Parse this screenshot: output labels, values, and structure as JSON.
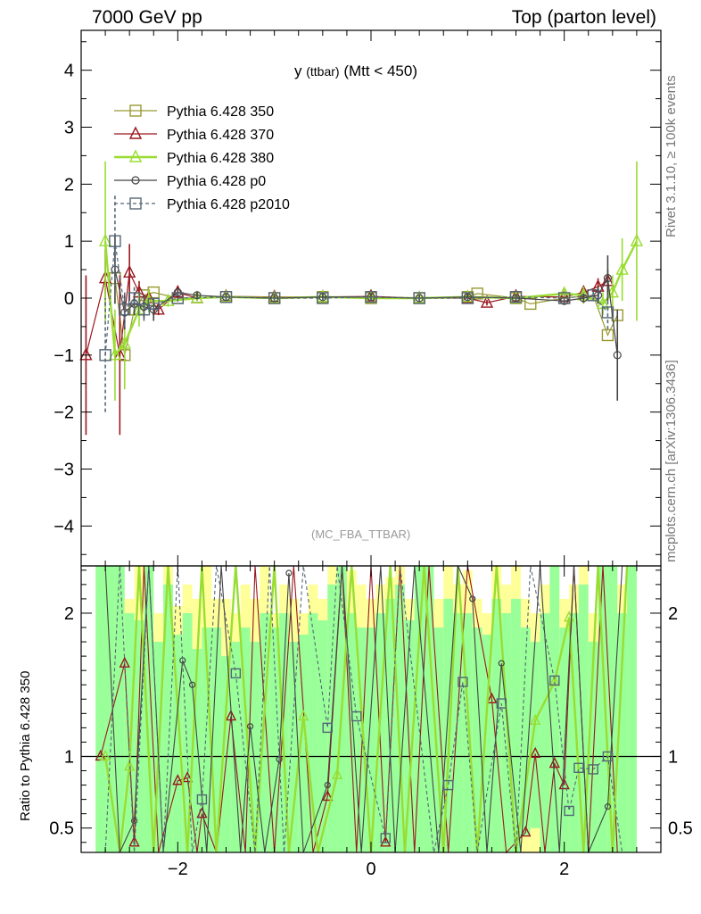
{
  "header": {
    "left": "7000 GeV pp",
    "right": "Top (parton level)"
  },
  "side_text": {
    "top": "Rivet 3.1.10, ≥ 100k events",
    "bottom": "mcplots.cern.ch [arXiv:1306.3436]"
  },
  "plot_title": {
    "main": "y",
    "sub": "(ttbar)",
    "cut": "(Mtt < 450)"
  },
  "analysis_label": "(MC_FBA_TTBAR)",
  "ratio_ylabel": "Ratio to Pythia 6.428 350",
  "colors": {
    "s350": "#999933",
    "s370": "#99181f",
    "s380": "#99dd33",
    "p0": "#444444",
    "p2010": "#556677",
    "band_yellow": "#ffff99",
    "band_green": "#99ff99"
  },
  "chart_data": [
    {
      "type": "scatter",
      "panel": "main",
      "xlim": [
        -3.0,
        3.0
      ],
      "ylim": [
        -4.7,
        4.7
      ],
      "x_ticks": [
        -2,
        0,
        2
      ],
      "y_ticks": [
        -4,
        -3,
        -2,
        -1,
        0,
        1,
        2,
        3,
        4
      ],
      "legend_position": "top-left",
      "series": [
        {
          "name": "Pythia 6.428 350",
          "key": "s350",
          "marker": "square",
          "x": [
            -2.65,
            -2.55,
            -2.45,
            -2.35,
            -2.25,
            -2.0,
            -1.5,
            -1.0,
            -0.5,
            0.0,
            0.5,
            1.0,
            1.1,
            1.5,
            1.65,
            2.0,
            2.3,
            2.45,
            2.55
          ],
          "y": [
            0.35,
            -1.0,
            -0.2,
            0.05,
            0.1,
            0.0,
            0.02,
            0.0,
            0.02,
            0.0,
            0.0,
            0.02,
            0.08,
            0.0,
            -0.1,
            0.0,
            0.05,
            -0.65,
            -0.3
          ]
        },
        {
          "name": "Pythia 6.428 370",
          "key": "s370",
          "marker": "triangle",
          "x": [
            -2.95,
            -2.75,
            -2.6,
            -2.5,
            -2.4,
            -2.3,
            -2.2,
            -2.0,
            -1.8,
            -1.5,
            -1.0,
            -0.5,
            0.0,
            0.5,
            1.0,
            1.2,
            1.5,
            2.0,
            2.2,
            2.35,
            2.45
          ],
          "y": [
            -1.0,
            0.35,
            -1.0,
            0.45,
            0.1,
            0.0,
            -0.2,
            0.1,
            0.0,
            0.03,
            0.02,
            0.02,
            0.03,
            0.0,
            0.0,
            -0.08,
            0.03,
            0.02,
            0.1,
            0.2,
            0.3
          ],
          "err": [
            1.4,
            0.5,
            1.4,
            0.5,
            0.2,
            0.1,
            0.1,
            0.1,
            0.05,
            0.05,
            0.05,
            0.05,
            0.05,
            0.05,
            0.05,
            0.05,
            0.05,
            0.05,
            0.1,
            0.15,
            0.2
          ]
        },
        {
          "name": "Pythia 6.428 380",
          "key": "s380",
          "marker": "triangle",
          "x": [
            -2.75,
            -2.65,
            -2.55,
            -2.4,
            -2.3,
            -2.1,
            -1.8,
            -1.5,
            -1.0,
            -0.5,
            0.0,
            0.5,
            1.0,
            1.5,
            2.0,
            2.2,
            2.4,
            2.5,
            2.6,
            2.75
          ],
          "y": [
            1.0,
            -1.0,
            -0.8,
            -0.2,
            -0.05,
            -0.05,
            0.0,
            0.02,
            0.0,
            0.02,
            0.0,
            0.0,
            0.02,
            0.0,
            0.08,
            0.05,
            -0.1,
            0.1,
            0.5,
            1.0
          ],
          "err": [
            1.4,
            0.8,
            0.8,
            0.3,
            0.2,
            0.1,
            0.05,
            0.05,
            0.05,
            0.05,
            0.05,
            0.05,
            0.05,
            0.05,
            0.1,
            0.15,
            0.2,
            0.3,
            0.55,
            1.4
          ]
        },
        {
          "name": "Pythia 6.428 p0",
          "key": "p0",
          "marker": "circle",
          "x": [
            -2.65,
            -2.55,
            -2.45,
            -2.35,
            -2.25,
            -2.0,
            -1.8,
            -1.5,
            -1.0,
            -0.5,
            0.0,
            0.5,
            1.0,
            1.5,
            2.0,
            2.2,
            2.35,
            2.45,
            2.55
          ],
          "y": [
            0.5,
            -0.25,
            -0.1,
            -0.15,
            -0.2,
            0.1,
            0.05,
            0.02,
            0.0,
            0.02,
            0.02,
            0.0,
            0.02,
            0.0,
            -0.05,
            0.0,
            0.05,
            0.35,
            -1.0
          ],
          "err": [
            0.6,
            0.3,
            0.2,
            0.2,
            0.2,
            0.08,
            0.06,
            0.05,
            0.05,
            0.05,
            0.05,
            0.05,
            0.05,
            0.05,
            0.06,
            0.08,
            0.15,
            0.4,
            0.8
          ]
        },
        {
          "name": "Pythia 6.428 p2010",
          "key": "p2010",
          "marker": "square",
          "x": [
            -2.75,
            -2.65,
            -2.55,
            -2.45,
            -2.35,
            -2.25,
            -2.0,
            -1.5,
            -1.0,
            -0.5,
            0.0,
            0.5,
            1.0,
            1.5,
            2.0,
            2.3,
            2.45
          ],
          "y": [
            -1.0,
            1.0,
            -0.2,
            0.0,
            -0.2,
            -0.1,
            0.0,
            0.02,
            0.0,
            0.0,
            0.02,
            0.0,
            0.0,
            0.02,
            0.0,
            0.05,
            -0.25
          ],
          "err": [
            1.0,
            0.8,
            0.3,
            0.2,
            0.2,
            0.1,
            0.06,
            0.05,
            0.05,
            0.05,
            0.05,
            0.05,
            0.05,
            0.05,
            0.06,
            0.1,
            0.3
          ]
        }
      ]
    },
    {
      "type": "line",
      "panel": "ratio",
      "ylabel": "Ratio to Pythia 6.428 350",
      "xlim": [
        -3.0,
        3.0
      ],
      "ylim": [
        0.33,
        2.33
      ],
      "x_ticks": [
        -2,
        0,
        2
      ],
      "y_ticks": [
        0.5,
        1,
        2
      ],
      "reference_line": 1.0,
      "bands": {
        "x": [
          -2.8,
          -2.7,
          -2.6,
          -2.5,
          -2.4,
          -2.3,
          -2.2,
          -2.1,
          -2.0,
          -1.9,
          -1.8,
          -1.7,
          -1.6,
          -1.5,
          -1.4,
          -1.3,
          -1.2,
          -1.1,
          -1.0,
          -0.9,
          -0.8,
          -0.7,
          -0.6,
          -0.5,
          -0.4,
          -0.3,
          -0.2,
          -0.1,
          0.0,
          0.1,
          0.2,
          0.3,
          0.4,
          0.5,
          0.6,
          0.7,
          0.8,
          0.9,
          1.0,
          1.1,
          1.2,
          1.3,
          1.4,
          1.5,
          1.6,
          1.7,
          1.8,
          1.9,
          2.0,
          2.1,
          2.2,
          2.3,
          2.4,
          2.5,
          2.6,
          2.7
        ],
        "yellow_upper": [
          2.33,
          2.33,
          2.33,
          2.1,
          2.33,
          2.33,
          2.0,
          2.33,
          2.05,
          2.2,
          2.1,
          2.33,
          2.1,
          2.1,
          2.0,
          2.2,
          2.1,
          2.33,
          2.0,
          2.2,
          2.1,
          2.0,
          2.2,
          2.1,
          2.33,
          2.33,
          2.3,
          2.2,
          2.1,
          2.2,
          2.25,
          2.33,
          2.1,
          2.33,
          2.33,
          2.1,
          2.33,
          2.2,
          2.3,
          2.1,
          2.0,
          2.33,
          2.2,
          2.33,
          2.1,
          2.0,
          2.2,
          2.33,
          2.1,
          2.2,
          2.33,
          2.0,
          2.33,
          2.33,
          2.2,
          2.33
        ],
        "yellow_lower": [
          0.33,
          0.33,
          0.33,
          0.33,
          0.33,
          0.33,
          0.33,
          0.33,
          0.33,
          0.33,
          0.33,
          0.33,
          0.33,
          0.33,
          0.33,
          0.33,
          0.33,
          0.33,
          0.33,
          0.33,
          0.33,
          0.33,
          0.33,
          0.33,
          0.33,
          0.33,
          0.33,
          0.33,
          0.33,
          0.33,
          0.33,
          0.33,
          0.33,
          0.33,
          0.33,
          0.33,
          0.33,
          0.33,
          0.33,
          0.33,
          0.33,
          0.33,
          0.33,
          0.33,
          0.33,
          0.33,
          0.33,
          0.33,
          0.33,
          0.33,
          0.33,
          0.33,
          0.33,
          0.33,
          0.33,
          0.33
        ],
        "green_upper": [
          2.33,
          2.33,
          2.33,
          2.0,
          1.95,
          2.33,
          1.8,
          2.2,
          1.85,
          2.0,
          1.75,
          1.9,
          1.9,
          1.7,
          1.8,
          1.9,
          1.8,
          2.0,
          1.9,
          2.0,
          1.8,
          1.85,
          2.0,
          1.95,
          2.2,
          2.33,
          2.0,
          1.9,
          1.9,
          2.0,
          2.1,
          2.2,
          1.95,
          2.33,
          2.33,
          1.9,
          2.1,
          2.0,
          2.0,
          1.9,
          1.85,
          2.1,
          2.0,
          2.1,
          1.9,
          1.8,
          2.0,
          2.33,
          1.9,
          2.0,
          2.2,
          1.8,
          2.33,
          2.33,
          2.0,
          2.33
        ],
        "green_lower": [
          0.33,
          0.33,
          0.33,
          0.33,
          0.33,
          0.33,
          0.33,
          0.33,
          0.33,
          0.33,
          0.33,
          0.33,
          0.33,
          0.33,
          0.33,
          0.33,
          0.33,
          0.33,
          0.33,
          0.33,
          0.33,
          0.33,
          0.33,
          0.33,
          0.33,
          0.33,
          0.33,
          0.33,
          0.33,
          0.33,
          0.33,
          0.33,
          0.33,
          0.33,
          0.33,
          0.33,
          0.33,
          0.33,
          0.33,
          0.33,
          0.33,
          0.33,
          0.33,
          0.33,
          0.45,
          0.5,
          0.33,
          0.33,
          0.33,
          0.33,
          0.33,
          0.33,
          0.33,
          0.33,
          0.33,
          0.33
        ]
      },
      "series": [
        {
          "key": "s370",
          "marker": "triangle",
          "x": [
            -2.8,
            -2.55,
            -2.45,
            -2.35,
            -2.2,
            -2.0,
            -1.9,
            -1.8,
            -1.75,
            -1.6,
            -1.45,
            -1.3,
            -1.2,
            -1.0,
            -0.8,
            -0.6,
            -0.45,
            -0.3,
            -0.15,
            0.0,
            0.15,
            0.3,
            0.45,
            0.6,
            0.8,
            1.0,
            1.25,
            1.4,
            1.6,
            1.7,
            1.8,
            1.9,
            2.0,
            2.1,
            2.25,
            2.4,
            2.55
          ],
          "y": [
            1.0,
            1.65,
            0.4,
            2.33,
            0.33,
            0.83,
            0.85,
            0.33,
            0.6,
            0.33,
            1.28,
            0.33,
            2.33,
            0.33,
            2.33,
            0.33,
            0.72,
            2.33,
            0.33,
            2.33,
            0.4,
            2.33,
            0.33,
            2.33,
            0.33,
            2.33,
            1.4,
            0.33,
            0.47,
            1.02,
            0.33,
            0.95,
            0.8,
            2.33,
            0.33,
            2.33,
            0.33
          ]
        },
        {
          "key": "s380",
          "marker": "triangle",
          "x": [
            -2.75,
            -2.6,
            -2.5,
            -2.4,
            -2.25,
            -2.1,
            -1.9,
            -1.75,
            -1.6,
            -1.4,
            -1.2,
            -1.0,
            -0.85,
            -0.7,
            -0.55,
            -0.35,
            -0.2,
            0.0,
            0.2,
            0.35,
            0.55,
            0.75,
            0.9,
            1.1,
            1.3,
            1.5,
            1.7,
            1.9,
            2.05,
            2.2,
            2.35,
            2.5,
            2.65
          ],
          "y": [
            1.0,
            0.33,
            0.93,
            2.33,
            0.33,
            2.33,
            0.33,
            2.33,
            0.33,
            2.33,
            0.33,
            2.33,
            0.33,
            1.28,
            0.33,
            0.87,
            2.33,
            0.33,
            2.33,
            0.33,
            2.33,
            0.33,
            2.33,
            0.33,
            2.33,
            0.33,
            1.25,
            1.52,
            1.97,
            0.33,
            2.33,
            0.33,
            2.33
          ]
        },
        {
          "key": "p0",
          "marker": "circle",
          "x": [
            -2.75,
            -2.6,
            -2.45,
            -2.3,
            -2.15,
            -1.95,
            -1.85,
            -1.7,
            -1.55,
            -1.35,
            -1.25,
            -1.1,
            -0.95,
            -0.85,
            -0.7,
            -0.45,
            -0.3,
            -0.1,
            0.1,
            0.25,
            0.45,
            0.7,
            0.9,
            1.05,
            1.2,
            1.35,
            1.55,
            1.75,
            1.95,
            2.1,
            2.25,
            2.45,
            2.6
          ],
          "y": [
            2.33,
            0.33,
            0.55,
            2.33,
            0.33,
            1.67,
            1.5,
            0.33,
            2.33,
            0.33,
            1.21,
            0.33,
            0.98,
            2.28,
            0.33,
            0.8,
            2.33,
            0.33,
            2.33,
            0.33,
            2.33,
            0.33,
            2.33,
            2.1,
            0.33,
            1.65,
            0.33,
            2.33,
            0.33,
            2.33,
            0.33,
            0.65,
            2.33
          ]
        },
        {
          "key": "p2010",
          "marker": "square",
          "x": [
            -2.75,
            -2.6,
            -2.45,
            -2.3,
            -2.15,
            -2.0,
            -1.85,
            -1.75,
            -1.6,
            -1.4,
            -1.2,
            -1.05,
            -0.9,
            -0.7,
            -0.45,
            -0.35,
            -0.15,
            0.15,
            0.3,
            0.65,
            0.8,
            0.95,
            1.1,
            1.35,
            1.5,
            1.65,
            1.9,
            2.05,
            2.15,
            2.3,
            2.45,
            2.6
          ],
          "y": [
            0.33,
            2.33,
            0.33,
            2.33,
            0.33,
            2.33,
            0.33,
            0.7,
            2.33,
            1.58,
            0.33,
            2.33,
            0.33,
            2.33,
            1.2,
            2.33,
            1.28,
            0.43,
            2.33,
            0.33,
            0.8,
            1.52,
            0.33,
            1.37,
            0.33,
            2.33,
            1.53,
            0.62,
            0.92,
            0.91,
            1.0,
            0.33
          ]
        }
      ]
    }
  ]
}
